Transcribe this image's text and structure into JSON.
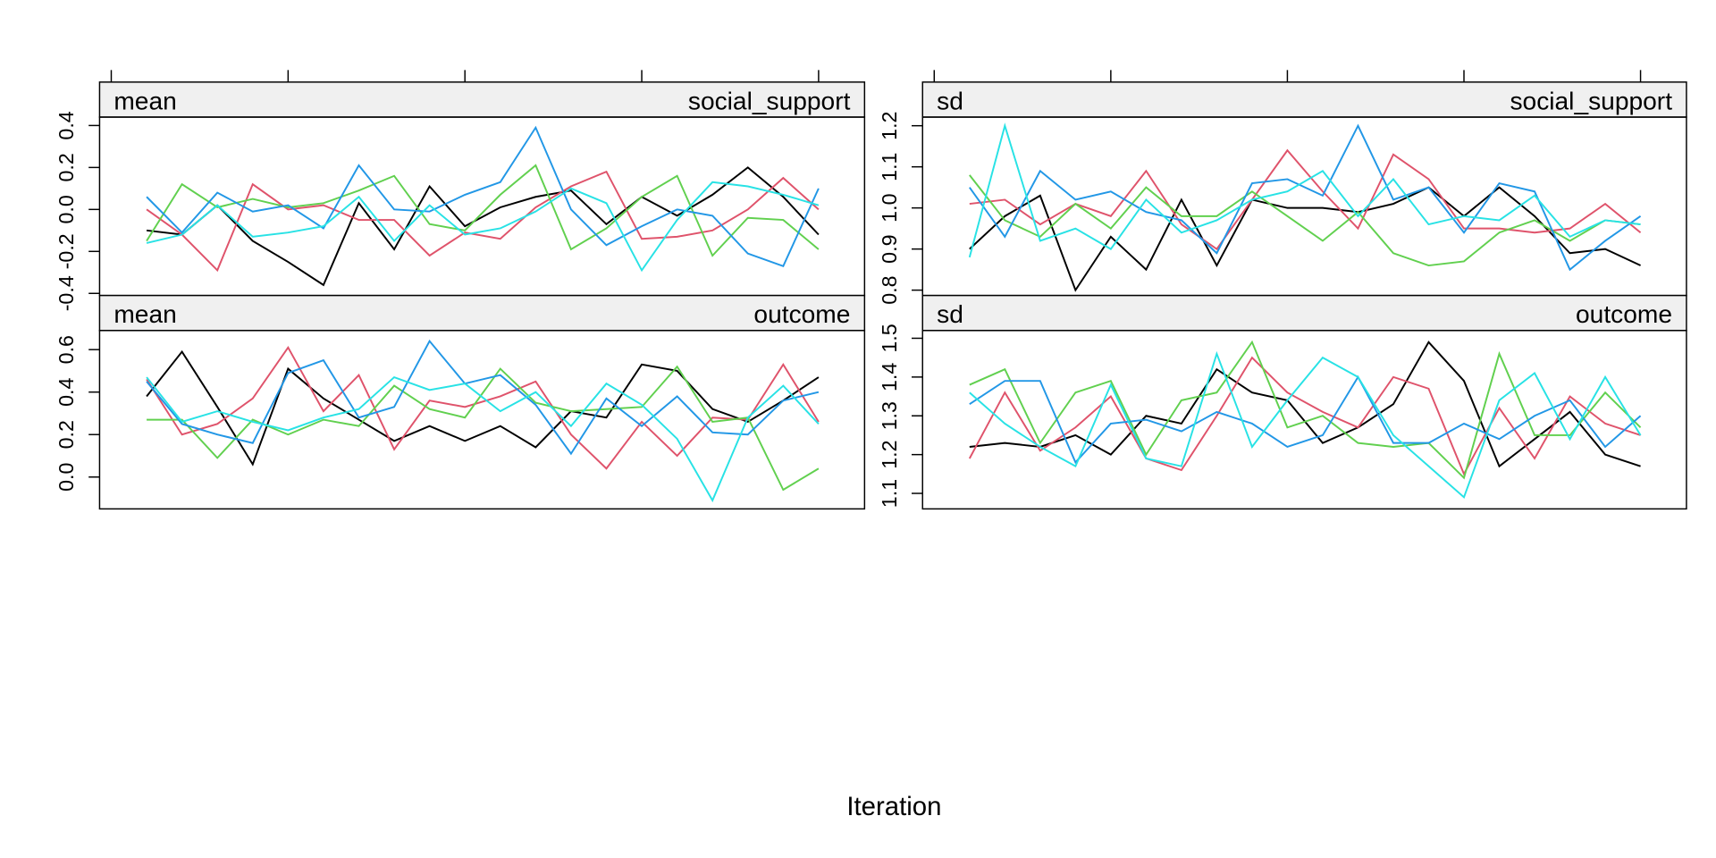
{
  "chart_data": [
    {
      "type": "line",
      "strip": [
        "mean",
        "social_support"
      ],
      "x": [
        1,
        2,
        3,
        4,
        5,
        6,
        7,
        8,
        9,
        10,
        11,
        12,
        13,
        14,
        15,
        16,
        17,
        18,
        19,
        20
      ],
      "xlim": [
        -0.33,
        21.3
      ],
      "xticks": [
        0,
        5,
        10,
        15,
        20
      ],
      "ylim": [
        -0.41,
        0.44
      ],
      "yticks": [
        -0.4,
        -0.2,
        {
          "value": 0,
          "label": "0.0"
        },
        0.2,
        0.4
      ],
      "series": [
        {
          "color": "#000000",
          "values": [
            -0.1,
            -0.12,
            0.02,
            -0.15,
            -0.25,
            -0.36,
            0.03,
            -0.19,
            0.11,
            -0.08,
            0.01,
            0.06,
            0.09,
            -0.07,
            0.06,
            -0.03,
            0.07,
            0.2,
            0.06,
            -0.12
          ]
        },
        {
          "color": "#DF536B",
          "values": [
            0.0,
            -0.12,
            -0.29,
            0.12,
            0.0,
            0.02,
            -0.05,
            -0.05,
            -0.22,
            -0.11,
            -0.14,
            0.01,
            0.11,
            0.18,
            -0.14,
            -0.13,
            -0.1,
            0.0,
            0.15,
            0.0
          ]
        },
        {
          "color": "#61D04F",
          "values": [
            -0.15,
            0.12,
            0.01,
            0.05,
            0.01,
            0.03,
            0.09,
            0.16,
            -0.07,
            -0.1,
            0.07,
            0.21,
            -0.19,
            -0.09,
            0.06,
            0.16,
            -0.22,
            -0.04,
            -0.05,
            -0.19
          ]
        },
        {
          "color": "#2297E6",
          "values": [
            0.06,
            -0.11,
            0.08,
            -0.01,
            0.02,
            -0.09,
            0.21,
            0.0,
            -0.01,
            0.07,
            0.13,
            0.39,
            0.0,
            -0.17,
            -0.08,
            0.0,
            -0.03,
            -0.21,
            -0.27,
            0.1
          ]
        },
        {
          "color": "#28E2E5",
          "values": [
            -0.16,
            -0.12,
            0.02,
            -0.13,
            -0.11,
            -0.08,
            0.06,
            -0.15,
            0.02,
            -0.12,
            -0.09,
            -0.01,
            0.1,
            0.03,
            -0.29,
            -0.05,
            0.13,
            0.11,
            0.07,
            0.02
          ]
        }
      ]
    },
    {
      "type": "line",
      "strip": [
        "sd",
        "social_support"
      ],
      "x": [
        1,
        2,
        3,
        4,
        5,
        6,
        7,
        8,
        9,
        10,
        11,
        12,
        13,
        14,
        15,
        16,
        17,
        18,
        19,
        20
      ],
      "xlim": [
        -0.33,
        21.3
      ],
      "xticks": [
        0,
        5,
        10,
        15,
        20
      ],
      "ylim": [
        0.787,
        1.221
      ],
      "yticks": [
        0.8,
        0.9,
        {
          "value": 1,
          "label": "1.0"
        },
        1.1,
        1.2
      ],
      "series": [
        {
          "color": "#000000",
          "values": [
            0.9,
            0.98,
            1.03,
            0.8,
            0.93,
            0.85,
            1.02,
            0.86,
            1.02,
            1.0,
            1.0,
            0.99,
            1.01,
            1.05,
            0.98,
            1.05,
            0.98,
            0.89,
            0.9,
            0.86
          ]
        },
        {
          "color": "#DF536B",
          "values": [
            1.01,
            1.02,
            0.96,
            1.01,
            0.98,
            1.09,
            0.96,
            0.9,
            1.02,
            1.14,
            1.04,
            0.95,
            1.13,
            1.07,
            0.95,
            0.95,
            0.94,
            0.95,
            1.01,
            0.94
          ]
        },
        {
          "color": "#61D04F",
          "values": [
            1.08,
            0.97,
            0.93,
            1.01,
            0.95,
            1.05,
            0.98,
            0.98,
            1.04,
            0.98,
            0.92,
            0.99,
            0.89,
            0.86,
            0.87,
            0.94,
            0.97,
            0.92,
            0.97,
            0.96
          ]
        },
        {
          "color": "#2297E6",
          "values": [
            1.05,
            0.93,
            1.09,
            1.02,
            1.04,
            0.99,
            0.97,
            0.89,
            1.06,
            1.07,
            1.03,
            1.2,
            1.02,
            1.05,
            0.94,
            1.06,
            1.04,
            0.85,
            0.92,
            0.98
          ]
        },
        {
          "color": "#28E2E5",
          "values": [
            0.88,
            1.2,
            0.92,
            0.95,
            0.9,
            1.02,
            0.94,
            0.97,
            1.02,
            1.04,
            1.09,
            0.98,
            1.07,
            0.96,
            0.98,
            0.97,
            1.03,
            0.93,
            0.97,
            0.96
          ]
        }
      ]
    },
    {
      "type": "line",
      "strip": [
        "mean",
        "outcome"
      ],
      "x": [
        1,
        2,
        3,
        4,
        5,
        6,
        7,
        8,
        9,
        10,
        11,
        12,
        13,
        14,
        15,
        16,
        17,
        18,
        19,
        20
      ],
      "xlim": [
        -0.33,
        21.3
      ],
      "ylim": [
        -0.15,
        0.69
      ],
      "yticks": [
        {
          "value": 0,
          "label": "0.0"
        },
        0.2,
        0.4,
        0.6
      ],
      "series": [
        {
          "color": "#000000",
          "values": [
            0.38,
            0.59,
            0.33,
            0.06,
            0.51,
            0.37,
            0.27,
            0.17,
            0.24,
            0.17,
            0.24,
            0.14,
            0.31,
            0.28,
            0.53,
            0.5,
            0.32,
            0.26,
            0.36,
            0.47
          ]
        },
        {
          "color": "#DF536B",
          "values": [
            0.46,
            0.2,
            0.25,
            0.37,
            0.61,
            0.31,
            0.48,
            0.13,
            0.36,
            0.33,
            0.38,
            0.45,
            0.2,
            0.04,
            0.26,
            0.1,
            0.28,
            0.27,
            0.53,
            0.26
          ]
        },
        {
          "color": "#61D04F",
          "values": [
            0.27,
            0.27,
            0.09,
            0.27,
            0.2,
            0.27,
            0.24,
            0.43,
            0.32,
            0.28,
            0.51,
            0.35,
            0.31,
            0.32,
            0.33,
            0.52,
            0.26,
            0.28,
            -0.06,
            0.04
          ]
        },
        {
          "color": "#2297E6",
          "values": [
            0.45,
            0.25,
            0.2,
            0.16,
            0.49,
            0.55,
            0.28,
            0.33,
            0.64,
            0.44,
            0.48,
            0.34,
            0.11,
            0.37,
            0.24,
            0.38,
            0.21,
            0.2,
            0.36,
            0.4
          ]
        },
        {
          "color": "#28E2E5",
          "values": [
            0.47,
            0.26,
            0.31,
            0.26,
            0.22,
            0.28,
            0.32,
            0.47,
            0.41,
            0.44,
            0.31,
            0.4,
            0.24,
            0.44,
            0.34,
            0.18,
            -0.11,
            0.28,
            0.43,
            0.25
          ]
        }
      ]
    },
    {
      "type": "line",
      "strip": [
        "sd",
        "outcome"
      ],
      "x": [
        1,
        2,
        3,
        4,
        5,
        6,
        7,
        8,
        9,
        10,
        11,
        12,
        13,
        14,
        15,
        16,
        17,
        18,
        19,
        20
      ],
      "xlim": [
        -0.33,
        21.3
      ],
      "ylim": [
        1.06,
        1.52
      ],
      "yticks": [
        1.1,
        1.2,
        1.3,
        1.4,
        1.5
      ],
      "series": [
        {
          "color": "#000000",
          "values": [
            1.22,
            1.23,
            1.22,
            1.25,
            1.2,
            1.3,
            1.28,
            1.42,
            1.36,
            1.34,
            1.23,
            1.27,
            1.33,
            1.49,
            1.39,
            1.17,
            1.24,
            1.31,
            1.2,
            1.17
          ]
        },
        {
          "color": "#DF536B",
          "values": [
            1.19,
            1.36,
            1.21,
            1.27,
            1.35,
            1.19,
            1.16,
            1.3,
            1.45,
            1.36,
            1.31,
            1.27,
            1.4,
            1.37,
            1.15,
            1.32,
            1.19,
            1.35,
            1.28,
            1.25
          ]
        },
        {
          "color": "#61D04F",
          "values": [
            1.38,
            1.42,
            1.23,
            1.36,
            1.39,
            1.2,
            1.34,
            1.36,
            1.49,
            1.27,
            1.3,
            1.23,
            1.22,
            1.23,
            1.14,
            1.46,
            1.25,
            1.25,
            1.36,
            1.27
          ]
        },
        {
          "color": "#2297E6",
          "values": [
            1.33,
            1.39,
            1.39,
            1.18,
            1.28,
            1.29,
            1.26,
            1.31,
            1.28,
            1.22,
            1.25,
            1.4,
            1.23,
            1.23,
            1.28,
            1.24,
            1.3,
            1.34,
            1.22,
            1.3
          ]
        },
        {
          "color": "#28E2E5",
          "values": [
            1.36,
            1.28,
            1.22,
            1.17,
            1.38,
            1.19,
            1.17,
            1.46,
            1.22,
            1.34,
            1.45,
            1.4,
            1.25,
            1.17,
            1.09,
            1.34,
            1.41,
            1.24,
            1.4,
            1.25
          ]
        }
      ]
    }
  ],
  "xlabel": "Iteration"
}
